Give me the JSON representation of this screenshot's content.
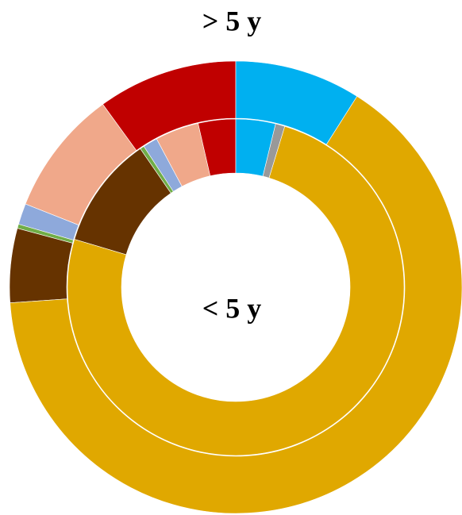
{
  "chart_data": {
    "type": "donut",
    "colors": [
      "#00B0F0",
      "#999999",
      "#E0A800",
      "#663300",
      "#70AD47",
      "#8EA9DB",
      "#F0A88A",
      "#C00000"
    ],
    "rings": [
      {
        "label": "> 5 y",
        "values": [
          9,
          0,
          64.9,
          5.3,
          0.3,
          1.5,
          9,
          10
        ]
      },
      {
        "label": "< 5 y",
        "values": [
          3.8,
          0.9,
          74.9,
          10.8,
          0.4,
          1.4,
          4.2,
          3.6
        ]
      }
    ]
  }
}
